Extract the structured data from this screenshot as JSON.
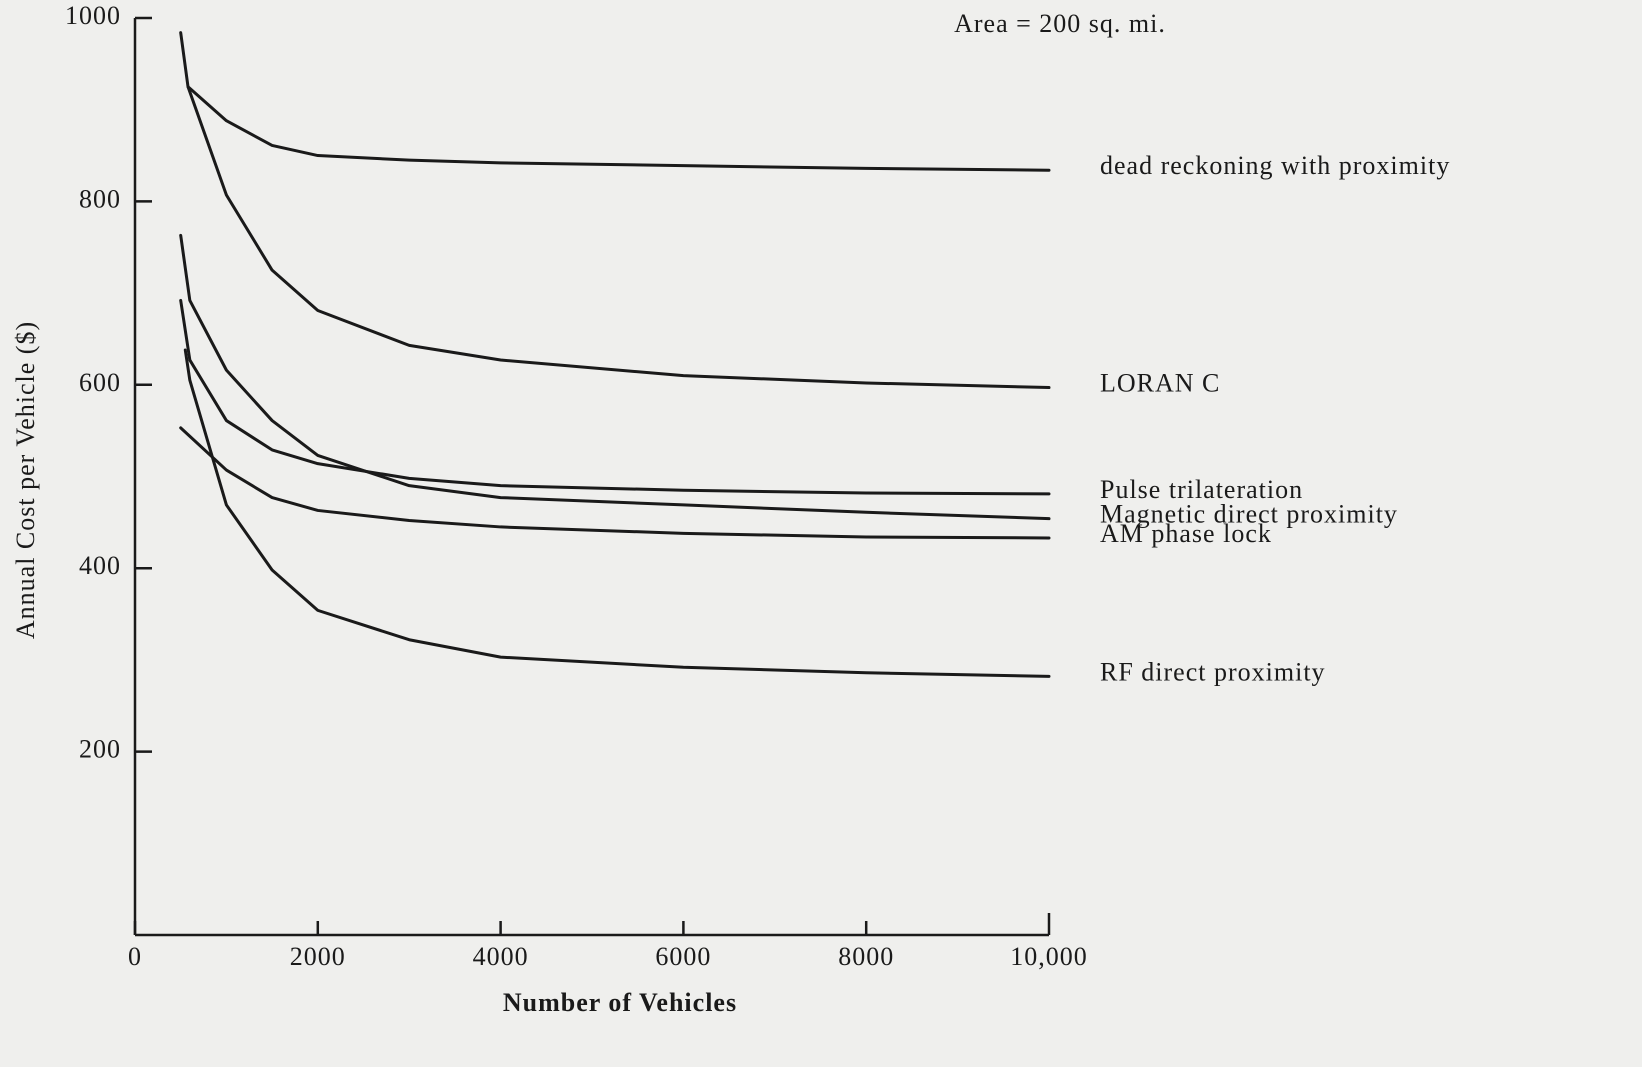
{
  "chart_data": {
    "type": "line",
    "annotation": "Area = 200 sq. mi.",
    "x_label": "Number of Vehicles",
    "y_label": "Annual Cost per Vehicle ($)",
    "xlim": [
      0,
      10000
    ],
    "ylim": [
      0,
      1000
    ],
    "xticks": [
      0,
      2000,
      4000,
      6000,
      8000,
      {
        "value": 10000,
        "label": "10,000"
      }
    ],
    "yticks": [
      200,
      400,
      600,
      800,
      1000
    ],
    "series": [
      {
        "name": "dead reckoning with proximity",
        "color": "#1a1a1a",
        "x": [
          500,
          580,
          1000,
          1500,
          2000,
          3000,
          4000,
          6000,
          8000,
          10000
        ],
        "values": [
          984,
          925,
          888,
          861,
          850,
          845,
          842,
          839,
          836,
          834
        ]
      },
      {
        "name": "LORAN C",
        "color": "#1a1a1a",
        "x": [
          580,
          1000,
          1500,
          2000,
          3000,
          4000,
          6000,
          8000,
          10000
        ],
        "values": [
          925,
          807,
          725,
          681,
          643,
          627,
          610,
          602,
          597
        ]
      },
      {
        "name": "Pulse trilateration",
        "color": "#1a1a1a",
        "x": [
          500,
          600,
          1000,
          1500,
          2000,
          3000,
          4000,
          6000,
          8000,
          10000
        ],
        "values": [
          692,
          627,
          561,
          529,
          514,
          498,
          490,
          485,
          482,
          481
        ]
      },
      {
        "name": "Magnetic direct proximity",
        "color": "#1a1a1a",
        "x": [
          500,
          600,
          1000,
          1500,
          2000,
          3000,
          4000,
          6000,
          8000,
          10000
        ],
        "values": [
          763,
          692,
          616,
          561,
          523,
          490,
          477,
          469,
          461,
          454
        ]
      },
      {
        "name": "AM phase lock",
        "color": "#1a1a1a",
        "x": [
          500,
          1000,
          1500,
          2000,
          3000,
          4000,
          6000,
          8000,
          10000
        ],
        "values": [
          553,
          507,
          477,
          463,
          452,
          445,
          438,
          434,
          433
        ]
      },
      {
        "name": "RF direct proximity",
        "color": "#1a1a1a",
        "x": [
          550,
          600,
          1000,
          1500,
          2000,
          3000,
          4000,
          6000,
          8000,
          10000
        ],
        "values": [
          638,
          605,
          469,
          398,
          354,
          322,
          303,
          292,
          286,
          282
        ]
      }
    ]
  }
}
